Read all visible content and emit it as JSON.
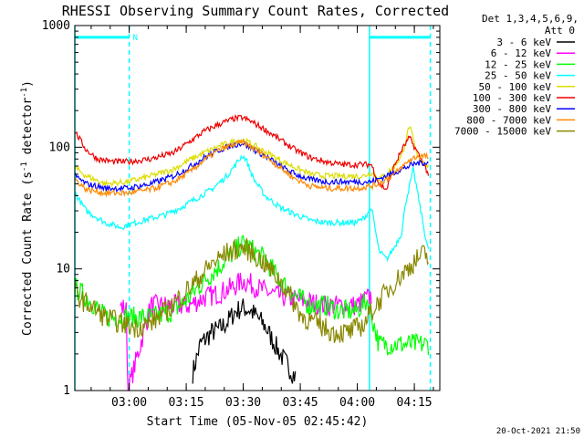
{
  "chart_data": {
    "type": "line",
    "title": "RHESSI Observing Summary Count Rates, Corrected",
    "xlabel": "Start Time (05-Nov-05 02:45:42)",
    "ylabel_main": "Corrected Count Rate (s",
    "ylabel_sup1": "-1",
    "ylabel_mid": " detector",
    "ylabel_sup2": "-1",
    "ylabel_end": ")",
    "y_scale": "log",
    "ylim": [
      1,
      1000
    ],
    "xlim_minutes": [
      0,
      96
    ],
    "y_ticks": [
      {
        "label": "1000",
        "value": 1000
      },
      {
        "label": "100",
        "value": 100
      },
      {
        "label": "10",
        "value": 10
      },
      {
        "label": "1",
        "value": 1
      }
    ],
    "x_ticks": [
      {
        "label": "03:00",
        "value": 14.3
      },
      {
        "label": "03:15",
        "value": 29.3
      },
      {
        "label": "03:30",
        "value": 44.3
      },
      {
        "label": "03:45",
        "value": 59.3
      },
      {
        "label": "04:00",
        "value": 74.3
      },
      {
        "label": "04:15",
        "value": 89.3
      }
    ],
    "legend_header": [
      "Det 1,3,4,5,6,9,",
      "Att 0"
    ],
    "legend_position": "right",
    "series": [
      {
        "name": "3 - 6 keV",
        "color": "#000000",
        "x": [
          31,
          33,
          36,
          38,
          40,
          42,
          44,
          46,
          48,
          50,
          52,
          54,
          56,
          58
        ],
        "values": [
          1.4,
          2.4,
          3.0,
          3.2,
          3.6,
          4.4,
          4.8,
          4.6,
          4.0,
          3.4,
          2.6,
          2.0,
          1.6,
          1.3
        ]
      },
      {
        "name": "6 - 12 keV",
        "color": "#ff00ff",
        "x": [
          12,
          13.5,
          14,
          20,
          30,
          34,
          38,
          42,
          44,
          46,
          48,
          52,
          58,
          66,
          74,
          78
        ],
        "values": [
          5.0,
          4.5,
          1.0,
          5.0,
          5.0,
          5.8,
          6.3,
          7.2,
          8.0,
          7.6,
          7.0,
          6.2,
          5.6,
          5.0,
          5.0,
          6.0
        ]
      },
      {
        "name": "12 - 25 keV",
        "color": "#00ff00",
        "x": [
          0,
          4,
          8,
          14,
          20,
          26,
          30,
          34,
          38,
          42,
          44,
          46,
          50,
          54,
          58,
          62,
          66,
          70,
          74,
          77,
          80,
          90,
          93
        ],
        "values": [
          7.0,
          5.5,
          4.0,
          4.0,
          4.0,
          4.5,
          5.8,
          8.0,
          10.5,
          14.0,
          16.0,
          15.0,
          12.0,
          8.0,
          6.0,
          5.0,
          5.0,
          4.5,
          4.5,
          5.5,
          2.4,
          2.4,
          2.4
        ]
      },
      {
        "name": "25 - 50 keV",
        "color": "#00ffff",
        "x": [
          0,
          3,
          8,
          12,
          16,
          20,
          24,
          28,
          32,
          36,
          40,
          42,
          44,
          45,
          47,
          50,
          54,
          58,
          62,
          66,
          70,
          74,
          76,
          78,
          80,
          82,
          84,
          86,
          87,
          89,
          90,
          91,
          92,
          93
        ],
        "values": [
          42,
          30,
          24,
          22,
          24,
          26,
          28,
          32,
          38,
          45,
          58,
          70,
          85,
          80,
          55,
          40,
          32,
          28,
          25,
          24,
          24,
          24,
          26,
          32,
          14,
          12,
          15,
          20,
          35,
          65,
          45,
          30,
          20,
          14
        ]
      },
      {
        "name": "50 - 100 keV",
        "color": "#dddd00",
        "x": [
          0,
          3,
          8,
          14,
          20,
          26,
          30,
          34,
          38,
          42,
          44,
          46,
          50,
          54,
          58,
          62,
          66,
          70,
          74,
          76,
          78,
          80,
          82,
          84,
          86,
          88,
          89,
          90,
          91,
          92,
          93
        ],
        "values": [
          68,
          58,
          50,
          52,
          58,
          66,
          78,
          90,
          102,
          112,
          115,
          108,
          92,
          78,
          68,
          60,
          58,
          58,
          58,
          58,
          62,
          55,
          60,
          70,
          85,
          150,
          115,
          85,
          80,
          75,
          70
        ]
      },
      {
        "name": "100 - 300 keV",
        "color": "#ee0000",
        "x": [
          0,
          3,
          6,
          10,
          14,
          20,
          26,
          30,
          34,
          38,
          42,
          44,
          46,
          50,
          54,
          58,
          62,
          66,
          70,
          74,
          78,
          80,
          82,
          84,
          86,
          88,
          90,
          92,
          93
        ],
        "values": [
          135,
          95,
          80,
          76,
          76,
          80,
          90,
          110,
          135,
          155,
          172,
          175,
          165,
          140,
          115,
          95,
          82,
          76,
          72,
          72,
          72,
          50,
          45,
          70,
          95,
          120,
          92,
          70,
          60
        ]
      },
      {
        "name": "300 - 800 keV",
        "color": "#0000ff",
        "x": [
          0,
          3,
          8,
          14,
          20,
          26,
          30,
          34,
          38,
          42,
          44,
          46,
          50,
          54,
          58,
          62,
          66,
          70,
          74,
          78,
          80,
          84,
          88,
          90,
          92,
          93
        ],
        "values": [
          58,
          50,
          46,
          46,
          50,
          58,
          68,
          82,
          95,
          105,
          108,
          100,
          85,
          70,
          60,
          54,
          52,
          52,
          52,
          52,
          55,
          62,
          70,
          74,
          75,
          74
        ]
      },
      {
        "name": "800 - 7000 keV",
        "color": "#ff8800",
        "x": [
          0,
          3,
          8,
          14,
          20,
          26,
          30,
          34,
          38,
          42,
          44,
          46,
          50,
          54,
          58,
          62,
          66,
          70,
          74,
          78,
          80,
          84,
          88,
          90,
          92,
          93
        ],
        "values": [
          55,
          45,
          42,
          42,
          45,
          52,
          62,
          78,
          95,
          105,
          110,
          102,
          85,
          68,
          55,
          48,
          46,
          46,
          46,
          48,
          50,
          60,
          78,
          84,
          85,
          82
        ]
      },
      {
        "name": "7000 - 15000 keV",
        "color": "#888800",
        "x": [
          0,
          2,
          4,
          8,
          12,
          16,
          20,
          24,
          28,
          32,
          36,
          40,
          44,
          46,
          50,
          54,
          56,
          58,
          60,
          64,
          68,
          72,
          76,
          78,
          82,
          86,
          90,
          92,
          93
        ],
        "values": [
          6.5,
          5.5,
          5.0,
          4.0,
          3.6,
          3.3,
          3.6,
          4.5,
          6.0,
          8.0,
          11.0,
          13.5,
          15.0,
          14.0,
          11.0,
          8.0,
          6.5,
          5.0,
          4.0,
          3.5,
          3.0,
          3.0,
          3.5,
          4.5,
          6.5,
          9.0,
          12.0,
          13.5,
          12.0
        ]
      }
    ],
    "attenuator_bars": [
      {
        "label": "N",
        "x": [
          0,
          14.3
        ],
        "value": 800
      },
      {
        "label": "",
        "x": [
          77.5,
          93.5
        ],
        "value": 800
      }
    ],
    "vertical_lines": [
      {
        "x": 0,
        "style": "solid"
      },
      {
        "x": 14.3,
        "style": "dashed"
      },
      {
        "x": 77.5,
        "style": "solid"
      },
      {
        "x": 93.5,
        "style": "dashed"
      }
    ],
    "grid": false,
    "footer": "20-Oct-2021 21:50"
  }
}
